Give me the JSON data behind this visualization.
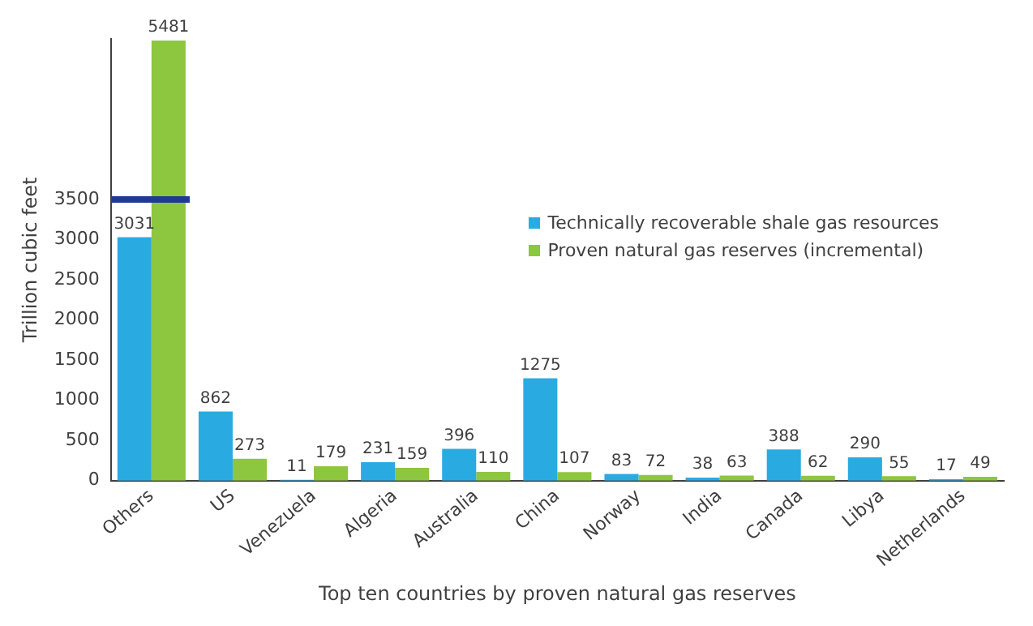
{
  "chart_data": {
    "type": "bar",
    "xlabel": "Top ten countries by proven natural gas reserves",
    "ylabel": "Trillion cubic feet",
    "categories": [
      "Others",
      "US",
      "Venezuela",
      "Algeria",
      "Australia",
      "China",
      "Norway",
      "India",
      "Canada",
      "Libya",
      "Netherlands"
    ],
    "series": [
      {
        "name": "Technically recoverable shale gas resources",
        "color": "#29abe2",
        "values": [
          3031,
          862,
          11,
          231,
          396,
          1275,
          83,
          38,
          388,
          290,
          17
        ]
      },
      {
        "name": "Proven natural gas reserves (incremental)",
        "color": "#8dc63f",
        "values": [
          5481,
          273,
          179,
          159,
          110,
          107,
          72,
          63,
          62,
          55,
          49
        ]
      }
    ],
    "ylim": [
      0,
      5500
    ],
    "yticks": [
      0,
      500,
      1000,
      1500,
      2000,
      2500,
      3000,
      3500
    ],
    "grid": false,
    "legend": "top right",
    "data_labels": true
  }
}
